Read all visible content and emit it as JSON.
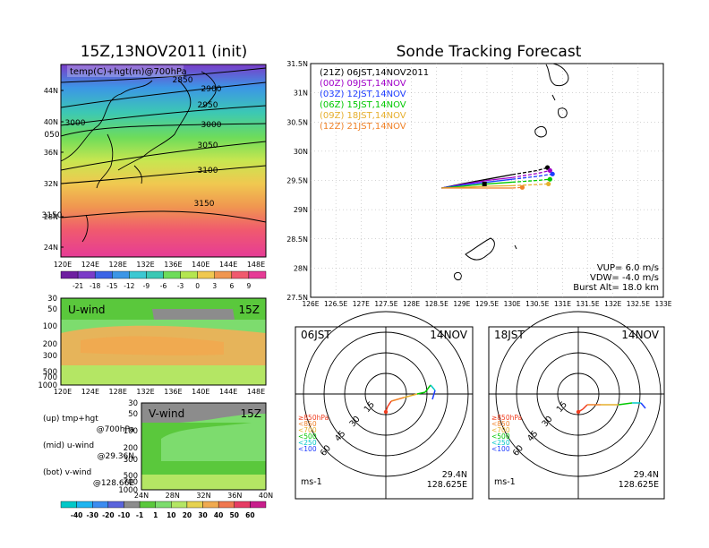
{
  "left_title": "15Z,13NOV2011 (init)",
  "right_title": "Sonde Tracking Forecast",
  "map_panel": {
    "label": "temp(C)+hgt(m)@700hPa",
    "lat_ticks": [
      "44N",
      "40N",
      "36N",
      "32N",
      "28N",
      "24N"
    ],
    "lon_ticks": [
      "120E",
      "124E",
      "128E",
      "132E",
      "136E",
      "140E",
      "144E",
      "148E"
    ],
    "contour_labels": [
      "2850",
      "2900",
      "2950",
      "3000",
      "3000",
      "050",
      "3050",
      "3100",
      "3150",
      "3150"
    ]
  },
  "temp_colorbar": {
    "labels": [
      "-21",
      "-18",
      "-15",
      "-12",
      "-9",
      "-6",
      "-3",
      "0",
      "3",
      "6",
      "9"
    ]
  },
  "uwind_panel": {
    "label": "U-wind",
    "time": "15Z",
    "p_ticks": [
      "30",
      "50",
      "100",
      "200",
      "300",
      "500",
      "700",
      "1000"
    ],
    "lon_ticks": [
      "120E",
      "124E",
      "128E",
      "132E",
      "136E",
      "140E",
      "144E",
      "148E"
    ]
  },
  "vwind_panel": {
    "label": "V-wind",
    "time": "15Z",
    "p_ticks": [
      "30",
      "50",
      "100",
      "200",
      "300",
      "500",
      "700",
      "1000"
    ],
    "lat_ticks": [
      "24N",
      "28N",
      "32N",
      "36N",
      "40N"
    ]
  },
  "legend_notes": [
    {
      "line1": "(up) tmp+hgt",
      "line2": "@700hPa"
    },
    {
      "line1": "(mid) u-wind",
      "line2": "@29.36N"
    },
    {
      "line1": "(bot) v-wind",
      "line2": "@128.66E"
    }
  ],
  "wind_colorbar": {
    "labels": [
      "-40",
      "-30",
      "-20",
      "-10",
      "-1",
      "1",
      "10",
      "20",
      "30",
      "40",
      "50",
      "60"
    ]
  },
  "chart_data": {
    "type": "line",
    "xlim": [
      126,
      133
    ],
    "ylim": [
      27.5,
      31.5
    ],
    "x_ticks": [
      "126E",
      "126.5E",
      "127E",
      "127.5E",
      "128E",
      "128.5E",
      "129E",
      "129.5E",
      "130E",
      "130.5E",
      "131E",
      "131.5E",
      "132E",
      "132.5E",
      "133E"
    ],
    "y_ticks": [
      "31.5N",
      "31N",
      "30.5N",
      "30N",
      "29.5N",
      "29N",
      "28.5N",
      "28N",
      "27.5N"
    ],
    "grid": true,
    "legend_position": "top-left",
    "series": [
      {
        "name": "(21Z) 06JST,14NOV2011",
        "color": "#000000",
        "x": [
          128.6,
          129,
          129.5,
          130,
          130.5,
          130.7
        ],
        "y": [
          29.37,
          29.44,
          29.52,
          29.6,
          29.67,
          29.72
        ]
      },
      {
        "name": "(00Z) 09JST,14NOV",
        "color": "#a000c8",
        "x": [
          128.6,
          129,
          129.5,
          130,
          130.5,
          130.75
        ],
        "y": [
          29.37,
          29.43,
          29.5,
          29.55,
          29.62,
          29.67
        ]
      },
      {
        "name": "(03Z) 12JST,14NOV",
        "color": "#1e3cff",
        "x": [
          128.6,
          129,
          129.5,
          130,
          130.5,
          130.8
        ],
        "y": [
          29.37,
          29.42,
          29.47,
          29.52,
          29.57,
          29.61
        ]
      },
      {
        "name": "(06Z) 15JST,14NOV",
        "color": "#00c800",
        "x": [
          128.6,
          129,
          129.5,
          130,
          130.5,
          130.75
        ],
        "y": [
          29.37,
          29.4,
          29.44,
          29.47,
          29.5,
          29.52
        ]
      },
      {
        "name": "(09Z) 18JST,14NOV",
        "color": "#e6af2d",
        "x": [
          128.6,
          129,
          129.5,
          130,
          130.5,
          130.72
        ],
        "y": [
          29.37,
          29.38,
          29.4,
          29.41,
          29.43,
          29.44
        ]
      },
      {
        "name": "(12Z) 21JST,14NOV",
        "color": "#f08228",
        "x": [
          128.6,
          129,
          129.5,
          130,
          130.2
        ],
        "y": [
          29.37,
          29.37,
          29.37,
          29.37,
          29.38
        ]
      }
    ],
    "params": [
      "VUP= 6.0 m/s",
      "VDW= -4.0 m/s",
      "Burst Alt= 18.0 km"
    ]
  },
  "hodographs": [
    {
      "time_label": "06JST",
      "date_label": "14NOV",
      "lat": "29.4N",
      "lon": "128.625E",
      "unit": "ms-1"
    },
    {
      "time_label": "18JST",
      "date_label": "14NOV",
      "lat": "29.4N",
      "lon": "128.625E",
      "unit": "ms-1"
    }
  ],
  "hodo_ring_labels": [
    "15",
    "30",
    "45",
    "60"
  ],
  "hodo_levels": [
    {
      "label": "≥850hPa",
      "color": "#f03c1e"
    },
    {
      "label": "<850",
      "color": "#f08228"
    },
    {
      "label": "<700",
      "color": "#e6af2d"
    },
    {
      "label": "<500",
      "color": "#00c800"
    },
    {
      "label": "<250",
      "color": "#00c8c8"
    },
    {
      "label": "<100",
      "color": "#1e3cff"
    }
  ]
}
